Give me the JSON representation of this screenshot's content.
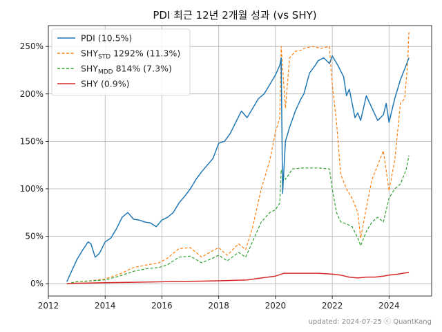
{
  "chart_data": {
    "type": "line",
    "title": "PDI 최근 12년 2개월 성과 (vs SHY)",
    "xlabel": "",
    "ylabel": "",
    "x_ticks": [
      "2012",
      "2014",
      "2016",
      "2018",
      "2020",
      "2022",
      "2024"
    ],
    "y_ticks": [
      "0%",
      "50%",
      "100%",
      "150%",
      "200%",
      "250%"
    ],
    "xlim": [
      2012.0,
      2025.5
    ],
    "ylim": [
      -13,
      272
    ],
    "grid": true,
    "legend_position": "top-left",
    "series": [
      {
        "name": "PDI (10.5%)",
        "legend_main": "PDI (10.5%)",
        "legend_sub": "",
        "legend_rest": "",
        "color": "#1f77b4",
        "dash": "solid",
        "x": [
          2012.65,
          2012.8,
          2013.0,
          2013.2,
          2013.4,
          2013.5,
          2013.65,
          2013.8,
          2014.0,
          2014.2,
          2014.4,
          2014.6,
          2014.8,
          2015.0,
          2015.2,
          2015.4,
          2015.6,
          2015.8,
          2016.0,
          2016.2,
          2016.4,
          2016.6,
          2016.8,
          2017.0,
          2017.2,
          2017.4,
          2017.6,
          2017.8,
          2018.0,
          2018.2,
          2018.4,
          2018.6,
          2018.8,
          2019.0,
          2019.2,
          2019.4,
          2019.6,
          2019.8,
          2020.0,
          2020.15,
          2020.2,
          2020.25,
          2020.35,
          2020.5,
          2020.7,
          2020.9,
          2021.0,
          2021.2,
          2021.4,
          2021.5,
          2021.7,
          2021.9,
          2022.0,
          2022.2,
          2022.4,
          2022.5,
          2022.6,
          2022.7,
          2022.8,
          2022.9,
          2023.0,
          2023.1,
          2023.2,
          2023.4,
          2023.6,
          2023.8,
          2023.9,
          2024.0,
          2024.2,
          2024.4,
          2024.6,
          2024.7
        ],
        "y": [
          2,
          12,
          25,
          35,
          44,
          42,
          28,
          32,
          44,
          48,
          58,
          70,
          75,
          68,
          67,
          65,
          64,
          60,
          67,
          70,
          75,
          85,
          92,
          100,
          110,
          118,
          125,
          132,
          148,
          150,
          158,
          170,
          182,
          175,
          185,
          195,
          200,
          210,
          220,
          230,
          238,
          95,
          150,
          165,
          182,
          195,
          200,
          222,
          230,
          235,
          238,
          232,
          240,
          230,
          218,
          198,
          205,
          190,
          175,
          180,
          172,
          185,
          198,
          185,
          172,
          178,
          190,
          170,
          195,
          215,
          230,
          238
        ]
      },
      {
        "name": "SHY_STD 1292% (11.3%)",
        "legend_main": "SHY",
        "legend_sub": "STD",
        "legend_rest": " 1292% (11.3%)",
        "color": "#ff7f0e",
        "dash": "4,2.5",
        "x": [
          2012.65,
          2013.0,
          2013.5,
          2014.0,
          2014.5,
          2015.0,
          2015.5,
          2015.9,
          2016.2,
          2016.6,
          2017.0,
          2017.4,
          2017.8,
          2018.0,
          2018.3,
          2018.7,
          2018.95,
          2019.2,
          2019.5,
          2019.8,
          2020.0,
          2020.15,
          2020.2,
          2020.35,
          2020.5,
          2020.7,
          2020.9,
          2021.0,
          2021.3,
          2021.6,
          2021.9,
          2022.0,
          2022.15,
          2022.3,
          2022.5,
          2022.7,
          2022.9,
          2023.0,
          2023.2,
          2023.4,
          2023.6,
          2023.8,
          2024.0,
          2024.2,
          2024.4,
          2024.55,
          2024.65,
          2024.7
        ],
        "y": [
          0,
          2,
          3,
          5,
          10,
          17,
          20,
          22,
          27,
          37,
          38,
          28,
          35,
          38,
          30,
          42,
          36,
          60,
          100,
          130,
          160,
          175,
          250,
          185,
          238,
          245,
          246,
          248,
          250,
          248,
          250,
          210,
          170,
          115,
          100,
          90,
          75,
          48,
          80,
          110,
          125,
          140,
          98,
          130,
          190,
          195,
          230,
          265
        ]
      },
      {
        "name": "SHY_MDD 814% (7.3%)",
        "legend_main": "SHY",
        "legend_sub": "MDD",
        "legend_rest": " 814% (7.3%)",
        "color": "#2ca02c",
        "dash": "4,2.5",
        "x": [
          2012.65,
          2013.0,
          2013.5,
          2014.0,
          2014.5,
          2015.0,
          2015.5,
          2015.9,
          2016.2,
          2016.6,
          2017.0,
          2017.4,
          2017.8,
          2018.0,
          2018.3,
          2018.7,
          2018.95,
          2019.2,
          2019.5,
          2019.8,
          2020.0,
          2020.15,
          2020.2,
          2020.35,
          2020.6,
          2021.0,
          2021.5,
          2021.9,
          2022.0,
          2022.15,
          2022.3,
          2022.5,
          2022.7,
          2022.9,
          2023.0,
          2023.2,
          2023.4,
          2023.6,
          2023.8,
          2024.0,
          2024.2,
          2024.4,
          2024.6,
          2024.7
        ],
        "y": [
          0,
          2,
          3,
          4,
          8,
          13,
          16,
          17,
          20,
          28,
          29,
          22,
          27,
          30,
          24,
          33,
          28,
          45,
          65,
          75,
          78,
          85,
          120,
          110,
          121,
          122,
          122,
          121,
          100,
          75,
          65,
          63,
          60,
          48,
          40,
          55,
          65,
          70,
          65,
          90,
          100,
          105,
          120,
          135
        ]
      },
      {
        "name": "SHY (0.9%)",
        "legend_main": "SHY (0.9%)",
        "legend_sub": "",
        "legend_rest": "",
        "color": "#d62728",
        "dash": "solid",
        "x": [
          2012.65,
          2013.0,
          2014.0,
          2015.0,
          2016.0,
          2017.0,
          2018.0,
          2019.0,
          2019.5,
          2020.0,
          2020.3,
          2021.0,
          2021.5,
          2022.0,
          2022.3,
          2022.6,
          2022.9,
          2023.2,
          2023.5,
          2023.8,
          2024.0,
          2024.3,
          2024.7
        ],
        "y": [
          0,
          0.5,
          1,
          1.5,
          2,
          2.5,
          3,
          4,
          6,
          8,
          11,
          11,
          11,
          10,
          9,
          7,
          6,
          7,
          7,
          8,
          9,
          10,
          12
        ]
      }
    ]
  },
  "footer": "updated: 2024-07-25 ⓒ QuantKang"
}
